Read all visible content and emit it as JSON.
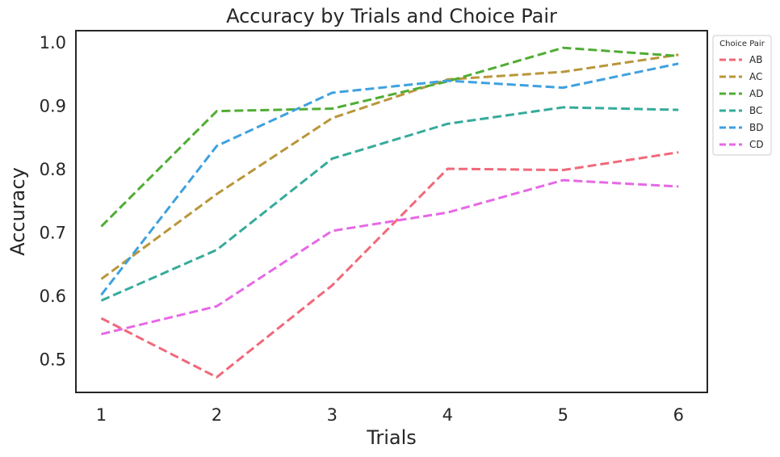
{
  "chart_data": {
    "type": "line",
    "title": "Accuracy by Trials and Choice Pair",
    "xlabel": "Trials",
    "ylabel": "Accuracy",
    "x": [
      1,
      2,
      3,
      4,
      5,
      6
    ],
    "xlim": [
      0.78,
      6.25
    ],
    "ylim": [
      0.447,
      1.018
    ],
    "yticks": [
      0.5,
      0.6,
      0.7,
      0.8,
      0.9,
      1.0
    ],
    "ytick_labels": [
      "0.5",
      "0.6",
      "0.7",
      "0.8",
      "0.9",
      "1.0"
    ],
    "xticks": [
      1,
      2,
      3,
      4,
      5,
      6
    ],
    "xtick_labels": [
      "1",
      "2",
      "3",
      "4",
      "5",
      "6"
    ],
    "grid": false,
    "line_style": "dashed",
    "legend": {
      "title": "Choice Pair",
      "placement": "outside-top-right"
    },
    "series": [
      {
        "name": "AB",
        "color": "#f0697a",
        "values": [
          0.564,
          0.471,
          0.616,
          0.8,
          0.798,
          0.826
        ]
      },
      {
        "name": "AC",
        "color": "#b8963a",
        "values": [
          0.626,
          0.76,
          0.88,
          0.941,
          0.953,
          0.98
        ]
      },
      {
        "name": "AD",
        "color": "#4fad33",
        "values": [
          0.709,
          0.891,
          0.895,
          0.938,
          0.991,
          0.978
        ]
      },
      {
        "name": "BC",
        "color": "#36ab9a",
        "values": [
          0.592,
          0.672,
          0.816,
          0.871,
          0.897,
          0.893
        ]
      },
      {
        "name": "BD",
        "color": "#3ea1e0",
        "values": [
          0.601,
          0.836,
          0.92,
          0.939,
          0.928,
          0.966
        ]
      },
      {
        "name": "CD",
        "color": "#e668e6",
        "values": [
          0.539,
          0.583,
          0.702,
          0.731,
          0.782,
          0.772
        ]
      }
    ]
  }
}
